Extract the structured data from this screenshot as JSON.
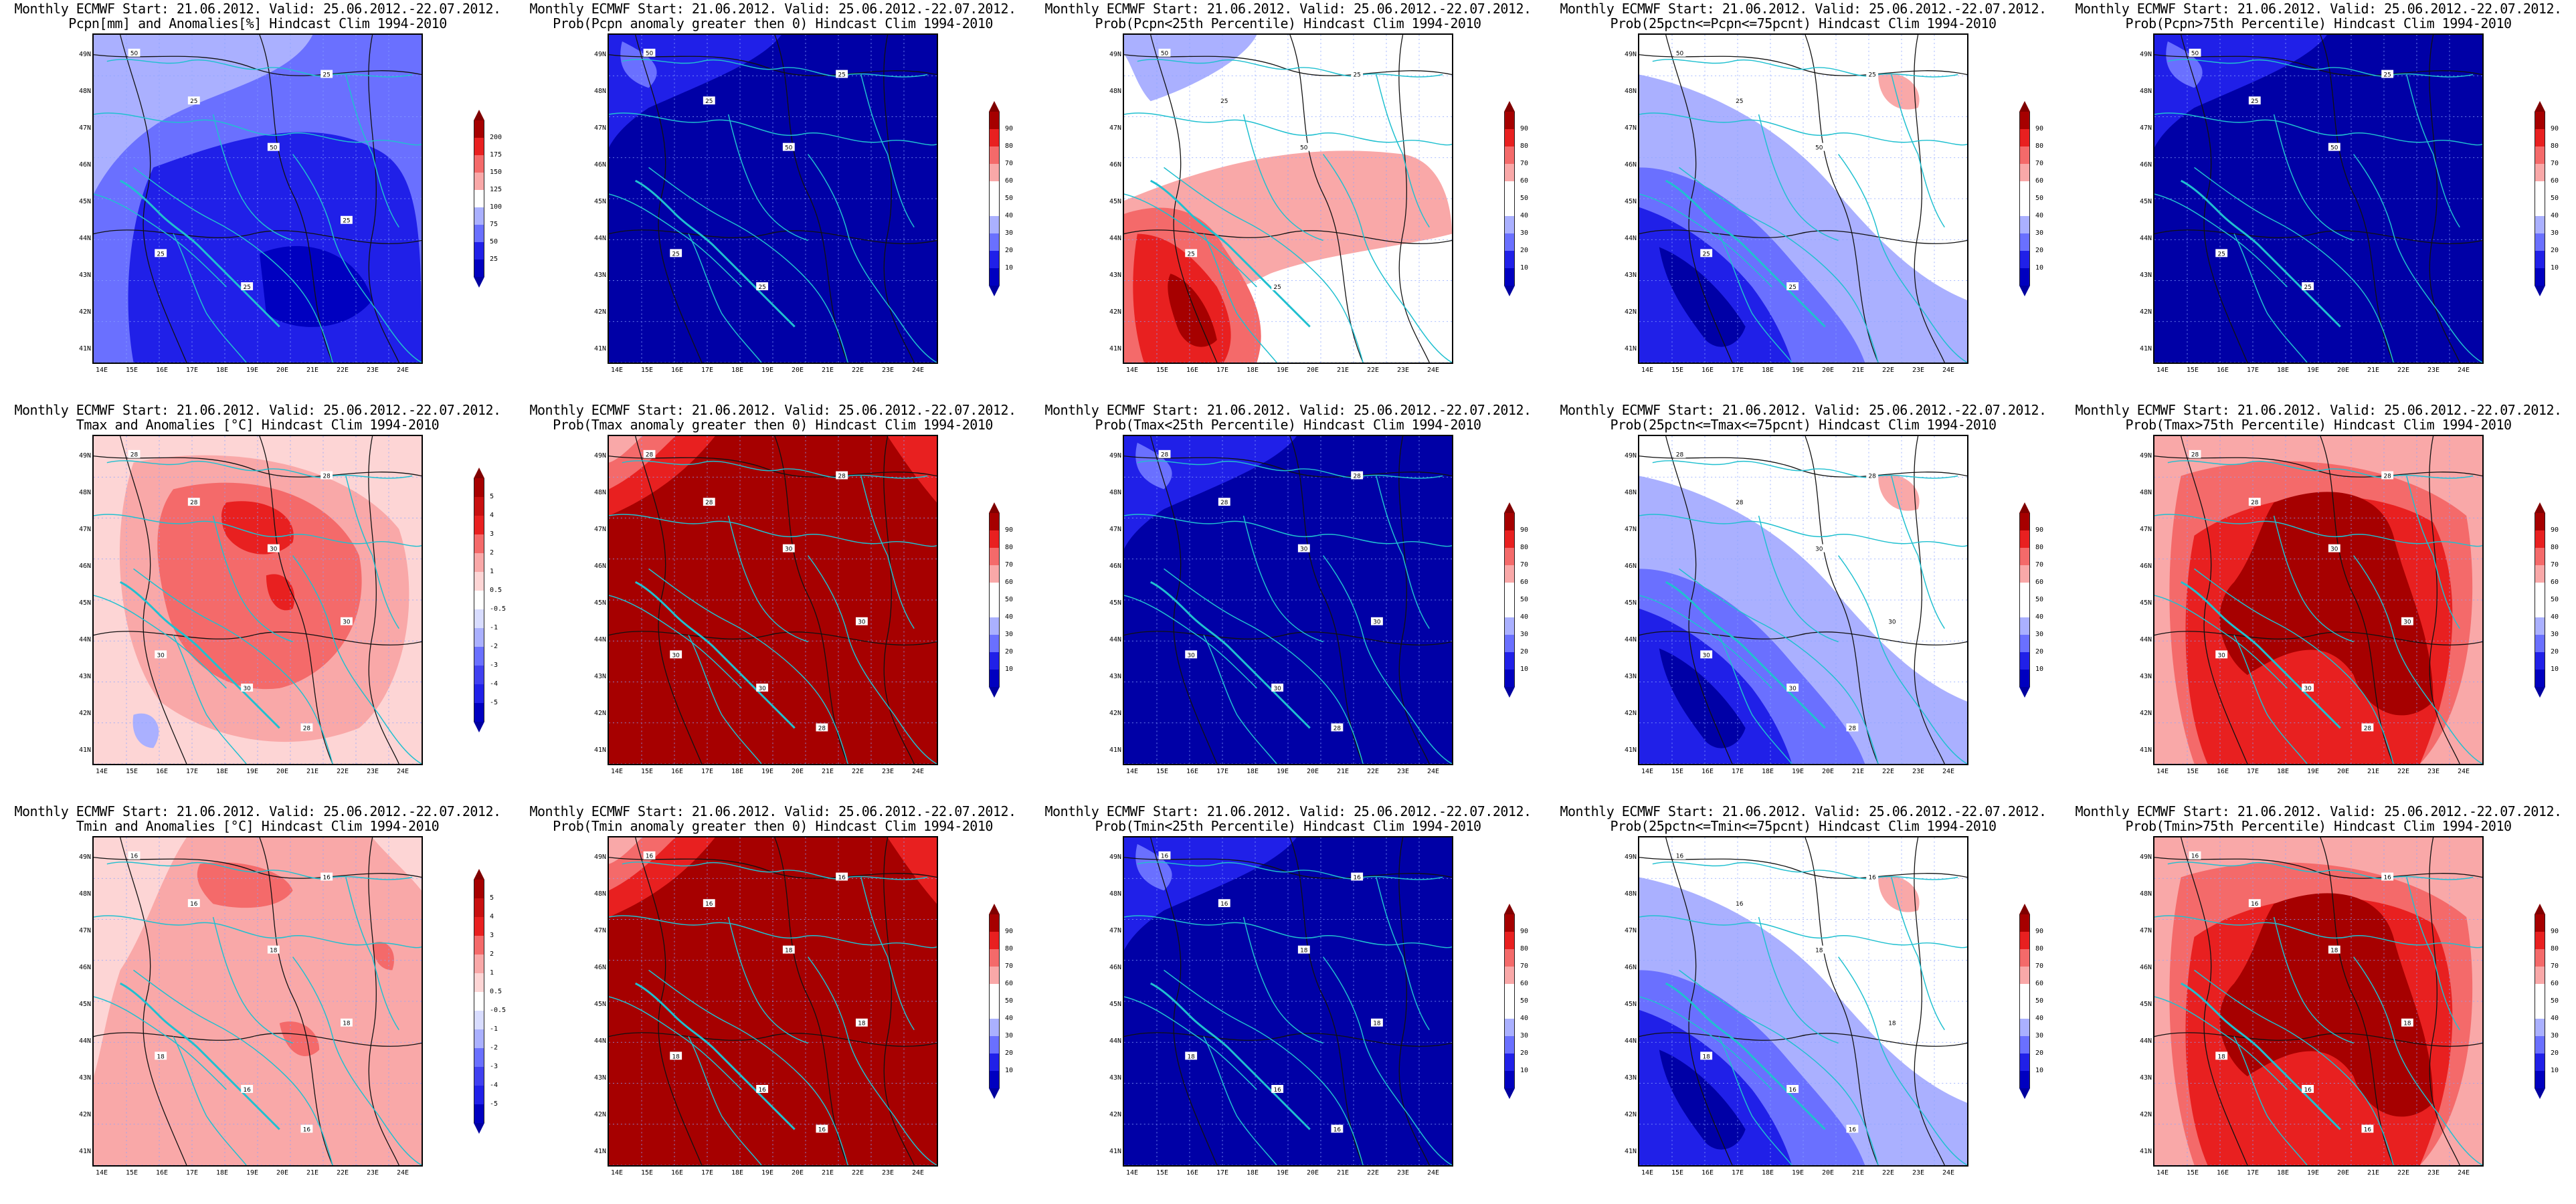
{
  "colors": {
    "grid_bg": "#ffffff",
    "border_cyan": "#20c0d0",
    "contour": "#111111",
    "red_scale": [
      "#fdd5d5",
      "#f9a8a8",
      "#f46a6a",
      "#e82020",
      "#a60000"
    ],
    "blue_scale": [
      "#d8dcff",
      "#aab0ff",
      "#6a70ff",
      "#2020e8",
      "#0000a6"
    ]
  },
  "scales": {
    "pcpn": {
      "ticks": [
        "200",
        "175",
        "150",
        "125",
        "100",
        "75",
        "50",
        "25"
      ],
      "colors": [
        "#a60000",
        "#e82020",
        "#f46a6a",
        "#f9a8a8",
        "#ffffff",
        "#aab0ff",
        "#6a70ff",
        "#2020e8",
        "#0000c0"
      ],
      "top": "#800000",
      "bottom": "#0000a0"
    },
    "prob": {
      "ticks": [
        "90",
        "80",
        "70",
        "60",
        "50",
        "40",
        "30",
        "20",
        "10"
      ],
      "colors": [
        "#a60000",
        "#e82020",
        "#f46a6a",
        "#f9a8a8",
        "#ffffff",
        "#ffffff",
        "#aab0ff",
        "#6a70ff",
        "#2020e8",
        "#0000c0"
      ],
      "top": "#800000",
      "bottom": "#0000a0"
    },
    "anom": {
      "ticks": [
        "5",
        "4",
        "3",
        "2",
        "1",
        "0.5",
        "-0.5",
        "-1",
        "-2",
        "-3",
        "-4",
        "-5"
      ],
      "colors": [
        "#a60000",
        "#c81010",
        "#e82020",
        "#f46a6a",
        "#f9a8a8",
        "#fdd5d5",
        "#ffffff",
        "#d8dcff",
        "#aab0ff",
        "#6a70ff",
        "#4040f0",
        "#2020e8",
        "#0000c0"
      ],
      "top": "#800000",
      "bottom": "#0000a0"
    }
  },
  "lat_labels": [
    "49N",
    "48N",
    "47N",
    "46N",
    "45N",
    "44N",
    "43N",
    "42N",
    "41N"
  ],
  "lon_labels": [
    "14E",
    "15E",
    "16E",
    "17E",
    "18E",
    "19E",
    "20E",
    "21E",
    "22E",
    "23E",
    "24E"
  ],
  "panels": [
    {
      "line1": "Monthly ECMWF Start: 21.06.2012. Valid: 25.06.2012.-22.07.2012.",
      "line2": "Pcpn[mm] and Anomalies[%] Hindcast Clim 1994-2010",
      "scale": "pcpn",
      "style": "pcpn",
      "contour_labels": [
        "50",
        "25",
        "50",
        "25",
        "25",
        "25",
        "25"
      ]
    },
    {
      "line1": "Monthly ECMWF Start: 21.06.2012. Valid: 25.06.2012.-22.07.2012.",
      "line2": "Prob(Pcpn anomaly greater then 0) Hindcast Clim 1994-2010",
      "scale": "prob",
      "style": "blue_deep",
      "contour_labels": [
        "50",
        "25",
        "50",
        "25",
        "25",
        "25"
      ]
    },
    {
      "line1": "Monthly ECMWF Start: 21.06.2012. Valid: 25.06.2012.-22.07.2012.",
      "line2": "Prob(Pcpn<25th Percentile) Hindcast Clim 1994-2010",
      "scale": "prob",
      "style": "mixed_red",
      "contour_labels": [
        "50",
        "25",
        "50",
        "25",
        "25",
        "25"
      ]
    },
    {
      "line1": "Monthly ECMWF Start: 21.06.2012. Valid: 25.06.2012.-22.07.2012.",
      "line2": "Prob(25pctn<=Pcpn<=75pcnt) Hindcast Clim 1994-2010",
      "scale": "prob",
      "style": "mixed_blue",
      "contour_labels": [
        "50",
        "25",
        "50",
        "25",
        "25",
        "25"
      ]
    },
    {
      "line1": "Monthly ECMWF Start: 21.06.2012. Valid: 25.06.2012.-22.07.2012.",
      "line2": "Prob(Pcpn>75th Percentile) Hindcast Clim 1994-2010",
      "scale": "prob",
      "style": "blue_deep",
      "contour_labels": [
        "50",
        "25",
        "50",
        "25",
        "25",
        "25"
      ]
    },
    {
      "line1": "Monthly ECMWF Start: 21.06.2012. Valid: 25.06.2012.-22.07.2012.",
      "line2": "Tmax and Anomalies [°C] Hindcast Clim 1994-2010",
      "scale": "anom",
      "style": "anom_red",
      "contour_labels": [
        "28",
        "28",
        "30",
        "28",
        "30",
        "30",
        "30",
        "28"
      ]
    },
    {
      "line1": "Monthly ECMWF Start: 21.06.2012. Valid: 25.06.2012.-22.07.2012.",
      "line2": "Prob(Tmax anomaly greater then 0) Hindcast Clim 1994-2010",
      "scale": "prob",
      "style": "red_deep",
      "contour_labels": [
        "28",
        "28",
        "30",
        "28",
        "30",
        "30",
        "30",
        "28"
      ]
    },
    {
      "line1": "Monthly ECMWF Start: 21.06.2012. Valid: 25.06.2012.-22.07.2012.",
      "line2": "Prob(Tmax<25th Percentile) Hindcast Clim 1994-2010",
      "scale": "prob",
      "style": "blue_deep",
      "contour_labels": [
        "28",
        "28",
        "30",
        "28",
        "30",
        "30",
        "30",
        "28"
      ]
    },
    {
      "line1": "Monthly ECMWF Start: 21.06.2012. Valid: 25.06.2012.-22.07.2012.",
      "line2": "Prob(25pctn<=Tmax<=75pcnt) Hindcast Clim 1994-2010",
      "scale": "prob",
      "style": "mixed_blue",
      "contour_labels": [
        "28",
        "28",
        "30",
        "28",
        "30",
        "30",
        "30",
        "28"
      ]
    },
    {
      "line1": "Monthly ECMWF Start: 21.06.2012. Valid: 25.06.2012.-22.07.2012.",
      "line2": "Prob(Tmax>75th Percentile) Hindcast Clim 1994-2010",
      "scale": "prob",
      "style": "red_strong",
      "contour_labels": [
        "28",
        "28",
        "30",
        "28",
        "30",
        "30",
        "30",
        "28"
      ]
    },
    {
      "line1": "Monthly ECMWF Start: 21.06.2012. Valid: 25.06.2012.-22.07.2012.",
      "line2": "Tmin and Anomalies [°C] Hindcast Clim 1994-2010",
      "scale": "anom",
      "style": "anom_pink",
      "contour_labels": [
        "16",
        "16",
        "18",
        "16",
        "18",
        "16",
        "18",
        "16"
      ]
    },
    {
      "line1": "Monthly ECMWF Start: 21.06.2012. Valid: 25.06.2012.-22.07.2012.",
      "line2": "Prob(Tmin anomaly greater then 0) Hindcast Clim 1994-2010",
      "scale": "prob",
      "style": "red_deep",
      "contour_labels": [
        "16",
        "16",
        "18",
        "16",
        "18",
        "16",
        "18",
        "16"
      ]
    },
    {
      "line1": "Monthly ECMWF Start: 21.06.2012. Valid: 25.06.2012.-22.07.2012.",
      "line2": "Prob(Tmin<25th Percentile) Hindcast Clim 1994-2010",
      "scale": "prob",
      "style": "blue_deep",
      "contour_labels": [
        "16",
        "16",
        "18",
        "16",
        "18",
        "16",
        "18",
        "16"
      ]
    },
    {
      "line1": "Monthly ECMWF Start: 21.06.2012. Valid: 25.06.2012.-22.07.2012.",
      "line2": "Prob(25pctn<=Tmin<=75pcnt) Hindcast Clim 1994-2010",
      "scale": "prob",
      "style": "mixed_blue",
      "contour_labels": [
        "16",
        "16",
        "18",
        "16",
        "18",
        "16",
        "18",
        "16"
      ]
    },
    {
      "line1": "Monthly ECMWF Start: 21.06.2012. Valid: 25.06.2012.-22.07.2012.",
      "line2": "Prob(Tmin>75th Percentile) Hindcast Clim 1994-2010",
      "scale": "prob",
      "style": "red_strong",
      "contour_labels": [
        "16",
        "16",
        "18",
        "16",
        "18",
        "16",
        "18",
        "16"
      ]
    }
  ]
}
